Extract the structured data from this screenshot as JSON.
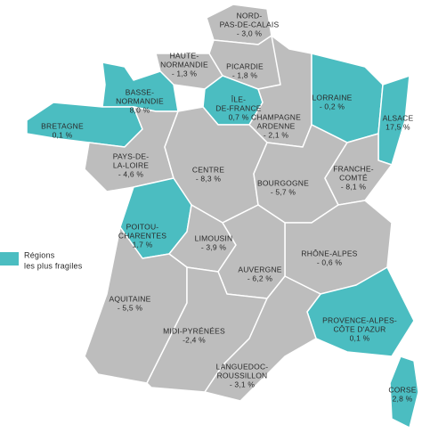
{
  "legend": {
    "color": "#4bbdc1",
    "label": [
      "Régions",
      "les plus fragiles"
    ]
  },
  "base_color": "#bdbdbd",
  "regions": [
    {
      "name": [
        "NORD-",
        "PAS-DE-CALAIS"
      ],
      "value": "- 3,0 %",
      "fragile": false
    },
    {
      "name": [
        "HAUTE-",
        "NORMANDIE"
      ],
      "value": "- 1,3 %",
      "fragile": false
    },
    {
      "name": [
        "PICARDIE"
      ],
      "value": "- 1,8 %",
      "fragile": false
    },
    {
      "name": [
        "BASSE-",
        "NORMANDIE"
      ],
      "value": "8,0 %",
      "fragile": true
    },
    {
      "name": [
        "ÎLE-",
        "DE-FRANCE"
      ],
      "value": "0,7 %",
      "fragile": true
    },
    {
      "name": [
        "CHAMPAGNE",
        "ARDENNE"
      ],
      "value": "- 2,1 %",
      "fragile": false
    },
    {
      "name": [
        "LORRAINE"
      ],
      "value": "- 0,2 %",
      "fragile": true
    },
    {
      "name": [
        "ALSACE"
      ],
      "value": "17,5 %",
      "fragile": true
    },
    {
      "name": [
        "BRETAGNE"
      ],
      "value": "0,1 %",
      "fragile": true
    },
    {
      "name": [
        "PAYS-DE-",
        "LA-LOIRE"
      ],
      "value": "- 4,6 %",
      "fragile": false
    },
    {
      "name": [
        "CENTRE"
      ],
      "value": "- 8,3 %",
      "fragile": false
    },
    {
      "name": [
        "BOURGOGNE"
      ],
      "value": "- 5,7 %",
      "fragile": false
    },
    {
      "name": [
        "FRANCHE-",
        "COMTÉ"
      ],
      "value": "- 8,1 %",
      "fragile": false
    },
    {
      "name": [
        "POITOU-",
        "CHARENTES"
      ],
      "value": "1,7 %",
      "fragile": true
    },
    {
      "name": [
        "LIMOUSIN"
      ],
      "value": "- 3,9 %",
      "fragile": false
    },
    {
      "name": [
        "RHÔNE-ALPES"
      ],
      "value": "- 0,6 %",
      "fragile": false
    },
    {
      "name": [
        "AUVERGNE"
      ],
      "value": "- 6,2 %",
      "fragile": false
    },
    {
      "name": [
        "AQUITAINE"
      ],
      "value": "- 5,5 %",
      "fragile": false
    },
    {
      "name": [
        "MIDI-PYRÉNÉES"
      ],
      "value": "-2,4 %",
      "fragile": false
    },
    {
      "name": [
        "PROVENCE-ALPES-",
        "CÔTE D'AZUR"
      ],
      "value": "0,1 %",
      "fragile": true
    },
    {
      "name": [
        "LANGUEDOC-",
        "ROUSSILLON"
      ],
      "value": "- 3,1 %",
      "fragile": false
    },
    {
      "name": [
        "CORSE"
      ],
      "value": "2,8 %",
      "fragile": true
    }
  ]
}
